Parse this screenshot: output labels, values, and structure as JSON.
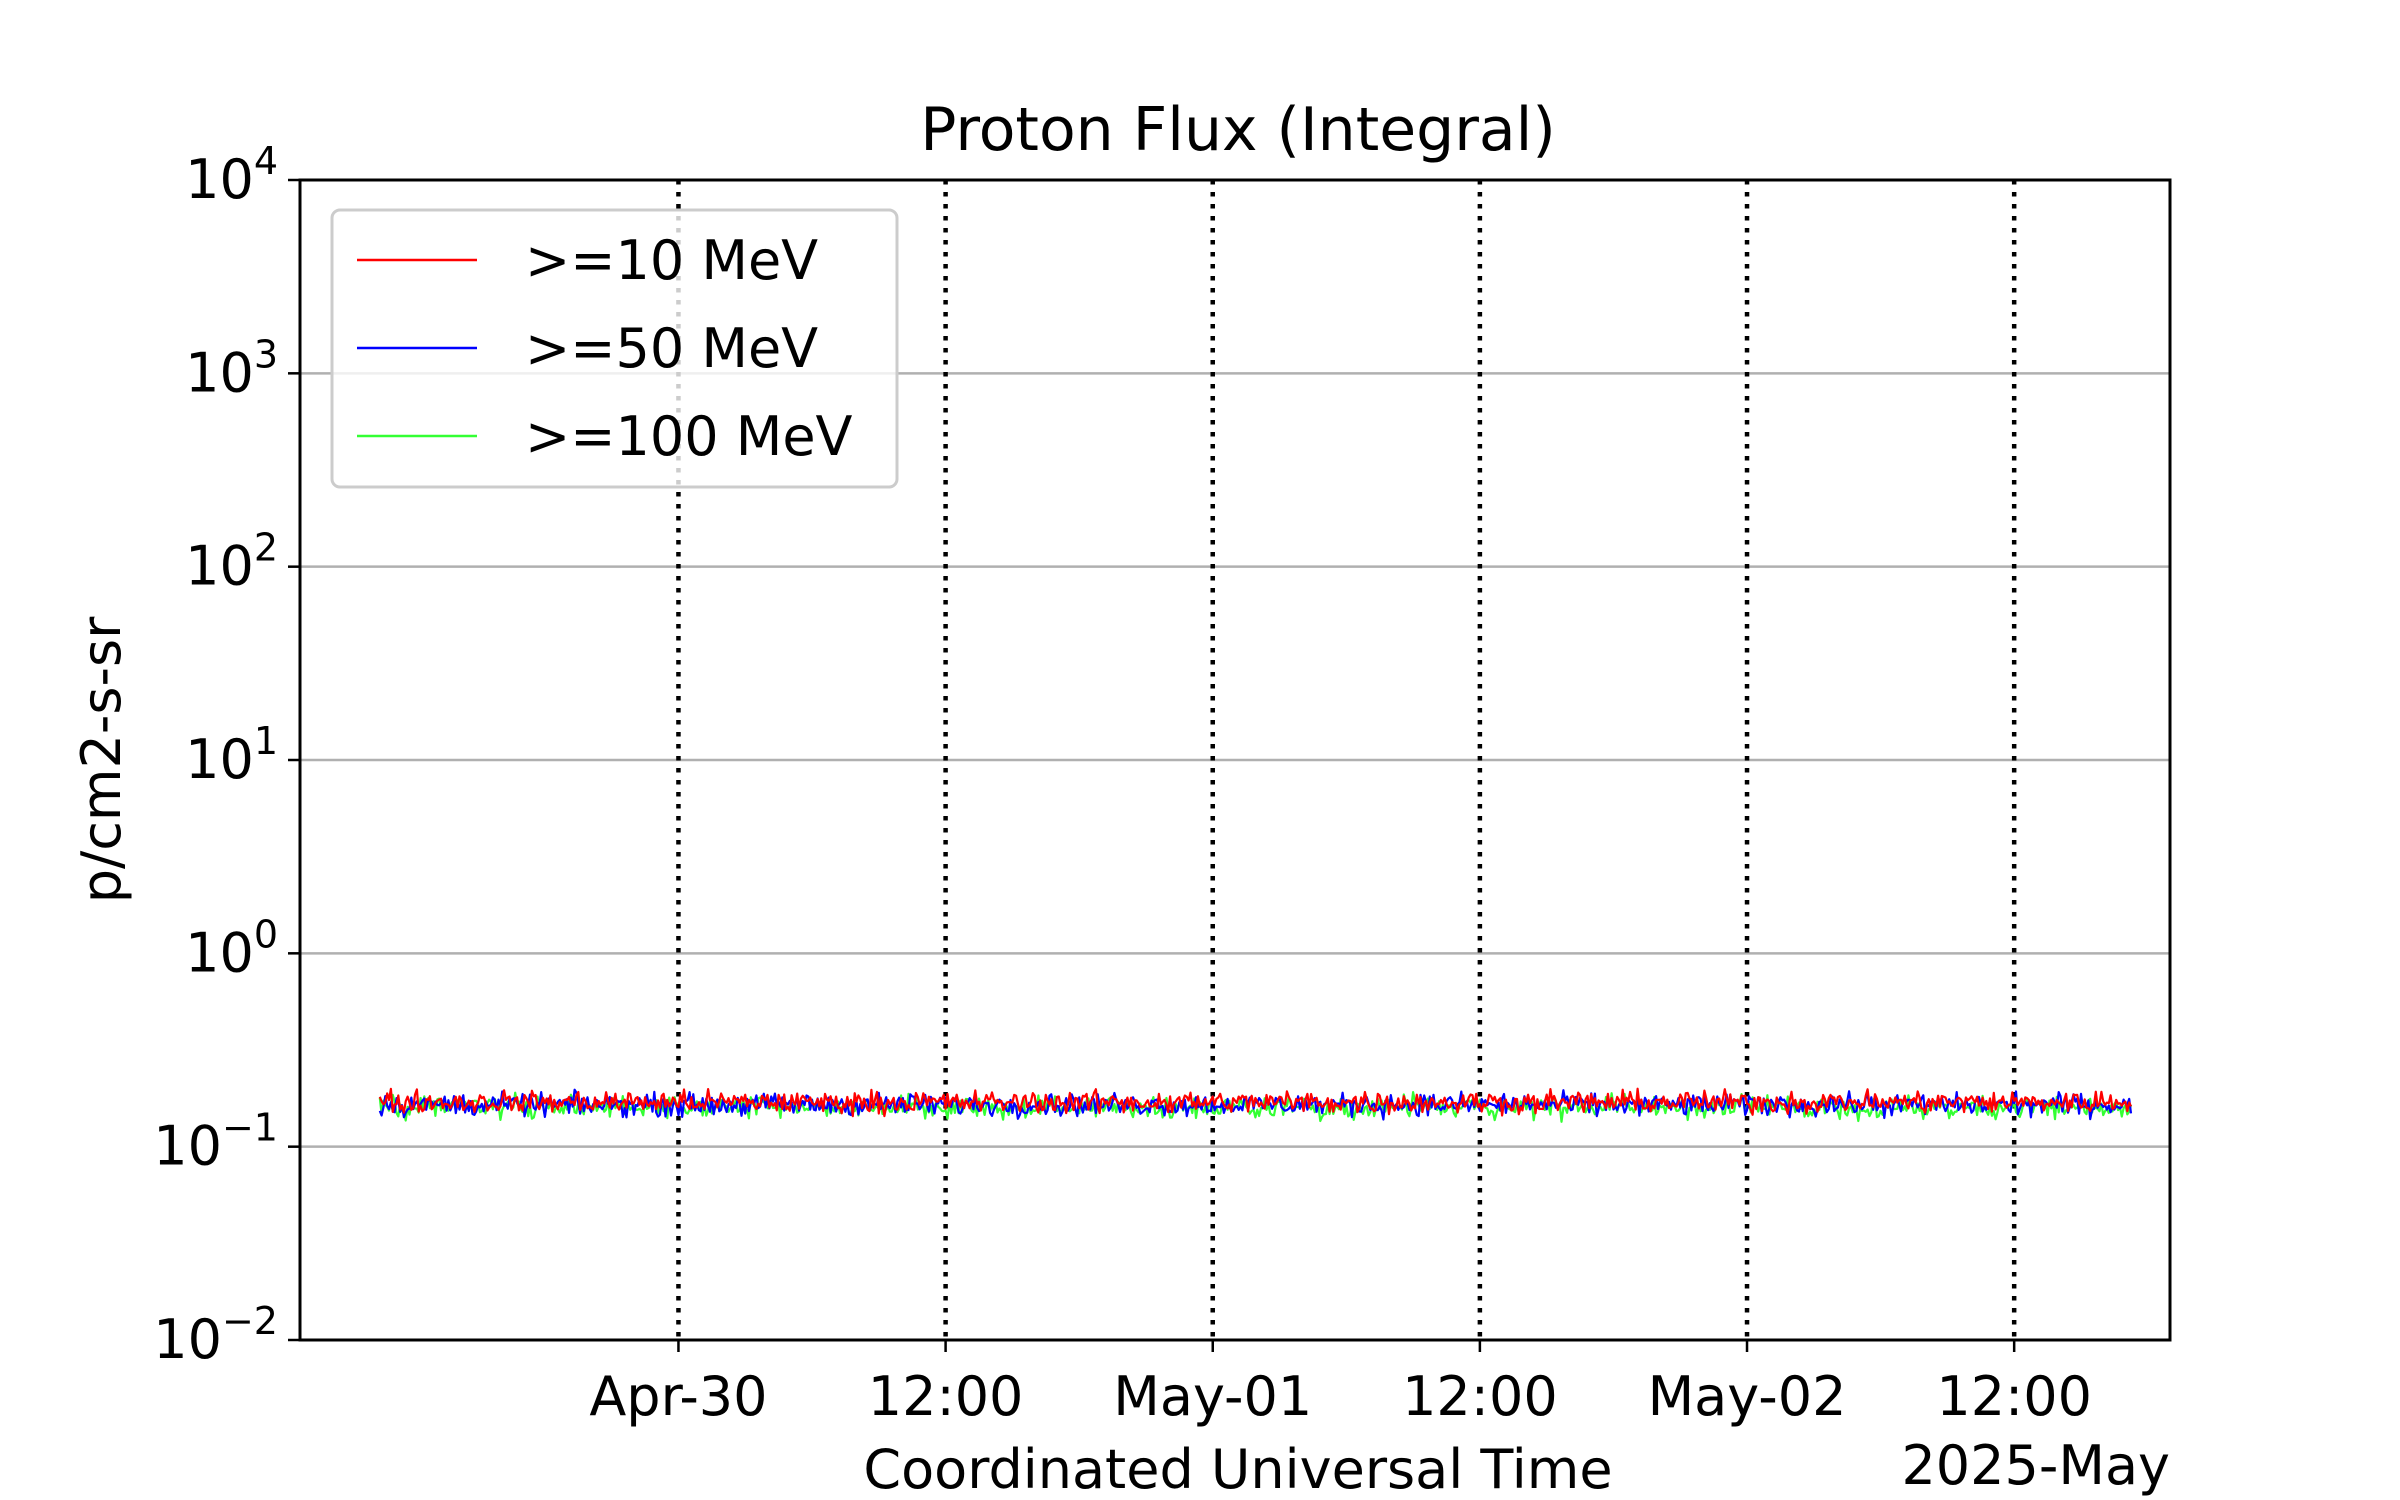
{
  "chart_data": {
    "type": "line",
    "title": "Proton Flux (Integral)",
    "xlabel": "Coordinated Universal Time",
    "ylabel": "p/cm2-s-sr",
    "y_scale": "log",
    "ylim": [
      0.01,
      10000
    ],
    "y_ticks": [
      {
        "value": 0.01,
        "base": "10",
        "exp": "−2"
      },
      {
        "value": 0.1,
        "base": "10",
        "exp": "−1"
      },
      {
        "value": 1,
        "base": "10",
        "exp": "0"
      },
      {
        "value": 10,
        "base": "10",
        "exp": "1"
      },
      {
        "value": 100,
        "base": "10",
        "exp": "2"
      },
      {
        "value": 1000,
        "base": "10",
        "exp": "3"
      },
      {
        "value": 10000,
        "base": "10",
        "exp": "4"
      }
    ],
    "xlim": [
      "2025-04-29T07:00",
      "2025-05-02T19:00"
    ],
    "x_ticks": [
      {
        "value": "2025-04-30T00:00",
        "label": "Apr-30"
      },
      {
        "value": "2025-04-30T12:00",
        "label": "12:00"
      },
      {
        "value": "2025-05-01T00:00",
        "label": "May-01"
      },
      {
        "value": "2025-05-01T12:00",
        "label": "12:00"
      },
      {
        "value": "2025-05-02T00:00",
        "label": "May-02"
      },
      {
        "value": "2025-05-02T12:00",
        "label": "12:00"
      }
    ],
    "x_offset_label": "2025-May",
    "grid": {
      "y": "solid gray",
      "x": "dotted black"
    },
    "legend_position": "upper-left",
    "x_start": "2025-04-29T10:35",
    "x_end": "2025-05-02T17:15",
    "sample_interval_minutes": 5,
    "series": [
      {
        "name": ">=10 MeV",
        "color": "#ff0000",
        "typical_value": 0.17,
        "peak_values": [
          0.22,
          0.23,
          0.24
        ]
      },
      {
        "name": ">=50 MeV",
        "color": "#0000ff",
        "typical_value": 0.165
      },
      {
        "name": ">=100 MeV",
        "color": "#33ff33",
        "typical_value": 0.16,
        "min_value": 0.13
      }
    ]
  }
}
